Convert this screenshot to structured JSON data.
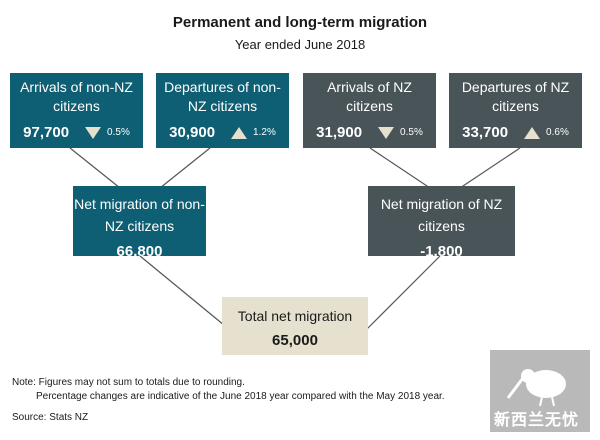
{
  "header": {
    "title": "Permanent and long-term migration",
    "subtitle": "Year ended June 2018"
  },
  "boxes": {
    "arrivals_non_nz": {
      "label": "Arrivals of non-NZ citizens",
      "value": "97,700",
      "change": "0.5%",
      "direction": "down"
    },
    "departures_non_nz": {
      "label": "Departures of non-NZ citizens",
      "value": "30,900",
      "change": "1.2%",
      "direction": "up"
    },
    "arrivals_nz": {
      "label": "Arrivals of NZ citizens",
      "value": "31,900",
      "change": "0.5%",
      "direction": "down"
    },
    "departures_nz": {
      "label": "Departures of NZ citizens",
      "value": "33,700",
      "change": "0.6%",
      "direction": "up"
    },
    "net_non_nz": {
      "label": "Net migration of non-NZ citizens",
      "value": "66,800"
    },
    "net_nz": {
      "label": "Net migration of NZ citizens",
      "value": "-1,800"
    },
    "total": {
      "label": "Total net migration",
      "value": "65,000"
    }
  },
  "notes": {
    "note1": "Note: Figures may not sum to totals due to rounding.",
    "note2": "Percentage changes are indicative of the June 2018 year compared with the May 2018 year.",
    "source": "Source: Stats NZ"
  },
  "watermark": {
    "text": "新西兰无忧",
    "icon": "kiwi-bird-icon"
  },
  "colors": {
    "teal": "#0e5f73",
    "slate": "#495459",
    "beige": "#e6e1cf",
    "arrow": "#e6e1cf"
  }
}
